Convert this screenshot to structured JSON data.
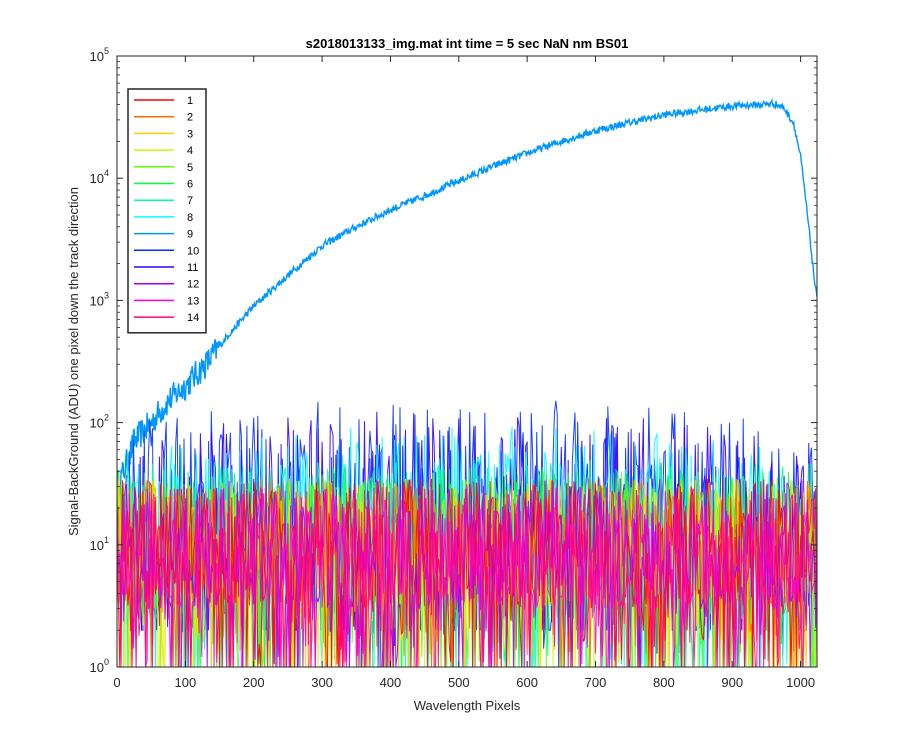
{
  "chart_data": {
    "type": "line",
    "title": "s2018013133_img.mat int time = 5 sec  NaN nm BS01",
    "xlabel": "Wavelength Pixels",
    "ylabel": "Signal-BackGround (ADU) one pixel down the track direction",
    "xlim": [
      0,
      1024
    ],
    "ylim": [
      1,
      100000
    ],
    "yscale": "log",
    "grid": false,
    "legend_position": "top-left",
    "x_ticks": [
      "0",
      "100",
      "200",
      "300",
      "400",
      "500",
      "600",
      "700",
      "800",
      "900",
      "1000"
    ],
    "x_tick_values": [
      0,
      100,
      200,
      300,
      400,
      500,
      600,
      700,
      800,
      900,
      1000
    ],
    "y_tick_values": [
      1,
      10,
      100,
      1000,
      10000,
      100000
    ],
    "y_tick_exponents": [
      "0",
      "1",
      "2",
      "3",
      "4",
      "5"
    ],
    "y_tick_base": "10",
    "series": [
      {
        "name": "1",
        "color": "#ff0000",
        "kind": "noise",
        "lo": 1,
        "mid": 20,
        "hi": 35
      },
      {
        "name": "2",
        "color": "#ff6a00",
        "kind": "noise",
        "lo": 1,
        "mid": 20,
        "hi": 35
      },
      {
        "name": "3",
        "color": "#ffd000",
        "kind": "noise",
        "lo": 1,
        "mid": 20,
        "hi": 35
      },
      {
        "name": "4",
        "color": "#c8ff00",
        "kind": "noise",
        "lo": 1,
        "mid": 20,
        "hi": 35
      },
      {
        "name": "5",
        "color": "#60ff00",
        "kind": "noise",
        "lo": 1,
        "mid": 20,
        "hi": 40
      },
      {
        "name": "6",
        "color": "#00ff40",
        "kind": "noise",
        "lo": 1,
        "mid": 22,
        "hi": 45
      },
      {
        "name": "7",
        "color": "#00ffa0",
        "kind": "noise",
        "lo": 1,
        "mid": 25,
        "hi": 50
      },
      {
        "name": "8",
        "color": "#00ffff",
        "kind": "noise",
        "lo": 1,
        "mid": 30,
        "hi": 60
      },
      {
        "name": "9",
        "color": "#0096ff",
        "kind": "signal",
        "x": [
          0,
          10,
          25,
          50,
          75,
          100,
          130,
          160,
          200,
          250,
          300,
          350,
          400,
          450,
          500,
          550,
          600,
          650,
          700,
          750,
          800,
          850,
          900,
          940,
          960,
          975,
          990,
          1000,
          1010,
          1020,
          1024
        ],
        "y": [
          30,
          40,
          70,
          100,
          150,
          200,
          300,
          500,
          900,
          1600,
          2800,
          4000,
          5500,
          7200,
          9500,
          12500,
          16000,
          20000,
          24500,
          28500,
          33000,
          36000,
          39000,
          40000,
          41000,
          38000,
          28000,
          15000,
          5000,
          1500,
          1000
        ]
      },
      {
        "name": "10",
        "color": "#0030ff",
        "kind": "noise",
        "lo": 2,
        "mid": 40,
        "hi": 100
      },
      {
        "name": "11",
        "color": "#3000ff",
        "kind": "noise",
        "lo": 2,
        "mid": 35,
        "hi": 80
      },
      {
        "name": "12",
        "color": "#a000ff",
        "kind": "noise",
        "lo": 1,
        "mid": 18,
        "hi": 35
      },
      {
        "name": "13",
        "color": "#ff00e0",
        "kind": "noise",
        "lo": 1,
        "mid": 15,
        "hi": 30
      },
      {
        "name": "14",
        "color": "#ff0080",
        "kind": "noise",
        "lo": 1,
        "mid": 15,
        "hi": 30
      }
    ]
  }
}
